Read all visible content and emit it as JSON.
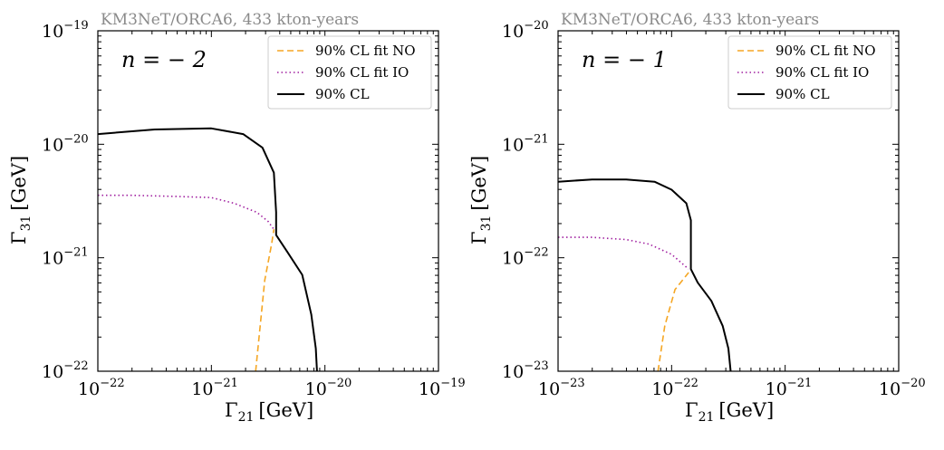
{
  "chart_data": [
    {
      "type": "line",
      "watermark": "KM3NeT/ORCA6, 433 kton-years",
      "annotation": "n = − 2",
      "xlabel": "Γ",
      "xlabel_sub": "21",
      "xlabel_unit": "[GeV]",
      "ylabel": "Γ",
      "ylabel_sub": "31",
      "ylabel_unit": "[GeV]",
      "xscale": "log",
      "yscale": "log",
      "xlim_exp": [
        -22,
        -19
      ],
      "ylim_exp": [
        -22,
        -19
      ],
      "xticks": [
        {
          "base": "10",
          "exp": "−22"
        },
        {
          "base": "10",
          "exp": "−21"
        },
        {
          "base": "10",
          "exp": "−20"
        },
        {
          "base": "10",
          "exp": "−19"
        }
      ],
      "yticks": [
        {
          "base": "10",
          "exp": "−22"
        },
        {
          "base": "10",
          "exp": "−21"
        },
        {
          "base": "10",
          "exp": "−20"
        },
        {
          "base": "10",
          "exp": "−19"
        }
      ],
      "legend_position": "top-right",
      "series": [
        {
          "name": "90% CL fit NO",
          "color": "#f5a623",
          "style": "dashed",
          "points": [
            [
              -20.61,
              -22.0
            ],
            [
              -20.57,
              -21.6
            ],
            [
              -20.53,
              -21.2
            ],
            [
              -20.47,
              -20.88
            ],
            [
              -20.45,
              -20.75
            ]
          ]
        },
        {
          "name": "90% CL fit IO",
          "color": "#a020a0",
          "style": "dotted",
          "points": [
            [
              -22.0,
              -20.45
            ],
            [
              -21.7,
              -20.45
            ],
            [
              -21.3,
              -20.46
            ],
            [
              -21.0,
              -20.47
            ],
            [
              -20.8,
              -20.52
            ],
            [
              -20.6,
              -20.6
            ],
            [
              -20.5,
              -20.68
            ],
            [
              -20.45,
              -20.75
            ]
          ]
        },
        {
          "name": "90% CL",
          "color": "#000000",
          "style": "solid",
          "points": [
            [
              -22.0,
              -19.91
            ],
            [
              -21.5,
              -19.87
            ],
            [
              -21.0,
              -19.86
            ],
            [
              -20.72,
              -19.91
            ],
            [
              -20.55,
              -20.03
            ],
            [
              -20.45,
              -20.25
            ],
            [
              -20.43,
              -20.6
            ],
            [
              -20.43,
              -20.8
            ],
            [
              -20.33,
              -20.95
            ],
            [
              -20.2,
              -21.15
            ],
            [
              -20.12,
              -21.5
            ],
            [
              -20.08,
              -21.8
            ],
            [
              -20.07,
              -22.0
            ]
          ]
        }
      ]
    },
    {
      "type": "line",
      "watermark": "KM3NeT/ORCA6, 433 kton-years",
      "annotation": "n = − 1",
      "xlabel": "Γ",
      "xlabel_sub": "21",
      "xlabel_unit": "[GeV]",
      "ylabel": "Γ",
      "ylabel_sub": "31",
      "ylabel_unit": "[GeV]",
      "xscale": "log",
      "yscale": "log",
      "xlim_exp": [
        -23,
        -20
      ],
      "ylim_exp": [
        -23,
        -20
      ],
      "xticks": [
        {
          "base": "10",
          "exp": "−23"
        },
        {
          "base": "10",
          "exp": "−22"
        },
        {
          "base": "10",
          "exp": "−21"
        },
        {
          "base": "10",
          "exp": "−20"
        }
      ],
      "yticks": [
        {
          "base": "10",
          "exp": "−23"
        },
        {
          "base": "10",
          "exp": "−22"
        },
        {
          "base": "10",
          "exp": "−21"
        },
        {
          "base": "10",
          "exp": "−20"
        }
      ],
      "legend_position": "top-right",
      "series": [
        {
          "name": "90% CL fit NO",
          "color": "#f5a623",
          "style": "dashed",
          "points": [
            [
              -22.12,
              -23.0
            ],
            [
              -22.06,
              -22.6
            ],
            [
              -21.97,
              -22.28
            ],
            [
              -21.85,
              -22.13
            ]
          ]
        },
        {
          "name": "90% CL fit IO",
          "color": "#a020a0",
          "style": "dotted",
          "points": [
            [
              -23.0,
              -21.82
            ],
            [
              -22.7,
              -21.82
            ],
            [
              -22.4,
              -21.84
            ],
            [
              -22.2,
              -21.88
            ],
            [
              -22.0,
              -21.97
            ],
            [
              -21.85,
              -22.1
            ]
          ]
        },
        {
          "name": "90% CL",
          "color": "#000000",
          "style": "solid",
          "points": [
            [
              -23.0,
              -21.33
            ],
            [
              -22.7,
              -21.31
            ],
            [
              -22.4,
              -21.31
            ],
            [
              -22.15,
              -21.33
            ],
            [
              -22.0,
              -21.4
            ],
            [
              -21.87,
              -21.52
            ],
            [
              -21.83,
              -21.67
            ],
            [
              -21.83,
              -22.1
            ],
            [
              -21.77,
              -22.22
            ],
            [
              -21.65,
              -22.38
            ],
            [
              -21.55,
              -22.6
            ],
            [
              -21.5,
              -22.8
            ],
            [
              -21.48,
              -23.0
            ]
          ]
        }
      ]
    }
  ]
}
